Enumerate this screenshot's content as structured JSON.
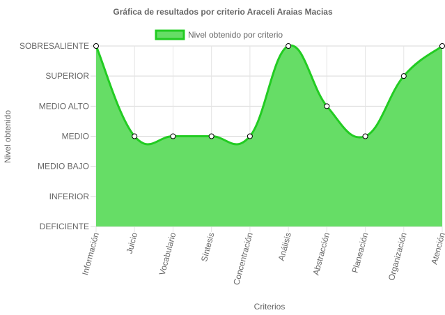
{
  "chart_data": {
    "type": "area",
    "title": "Gráfica de resultados por criterio Araceli Araias Macias",
    "xlabel": "Criterios",
    "ylabel": "Nivel obtenido",
    "categories": [
      "Información",
      "Juicio",
      "Vocabulario",
      "Síntesis",
      "Concentración",
      "Análisis",
      "Abstracción",
      "Planeación",
      "Organización",
      "Atención"
    ],
    "y_levels": [
      "DEFICIENTE",
      "INFERIOR",
      "MEDIO BAJO",
      "MEDIO",
      "MEDIO ALTO",
      "SUPERIOR",
      "SOBRESALIENTE"
    ],
    "ylim": [
      0,
      6
    ],
    "series": [
      {
        "name": "Nivel obtenido por criterio",
        "values": [
          6,
          3,
          3,
          3,
          3,
          6,
          4,
          3,
          5,
          6
        ],
        "fill_color": "#66dd66",
        "line_color": "#22cc22"
      }
    ],
    "legend_position": "top",
    "grid": true
  }
}
